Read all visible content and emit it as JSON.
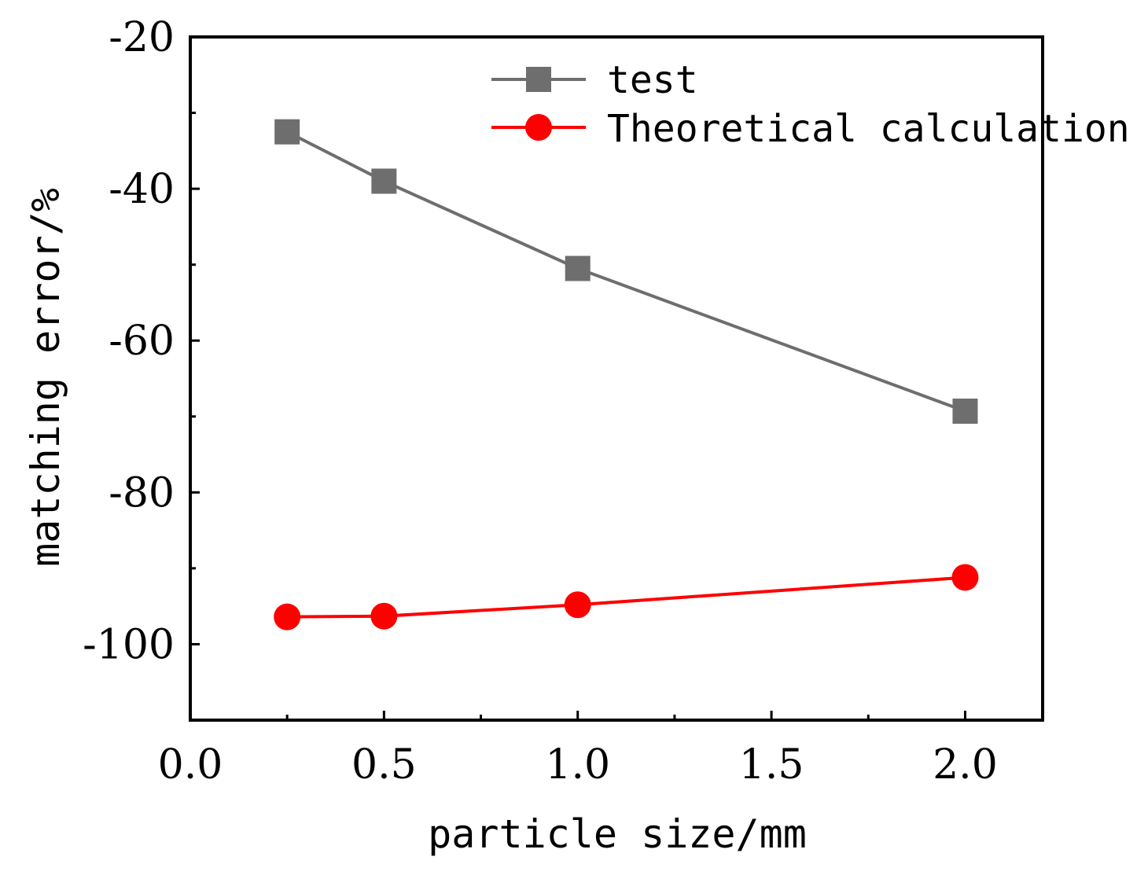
{
  "chart_data": {
    "type": "line",
    "title": "",
    "xlabel": "particle size/mm",
    "ylabel": "matching error/%",
    "xlim": [
      0.0,
      2.2
    ],
    "ylim": [
      -110,
      -20
    ],
    "xticks": [
      0.0,
      0.5,
      1.0,
      1.5,
      2.0
    ],
    "xtick_labels": [
      "0.0",
      "0.5",
      "1.0",
      "1.5",
      "2.0"
    ],
    "yticks": [
      -20,
      -40,
      -60,
      -80,
      -100
    ],
    "ytick_labels": [
      "-20",
      "-40",
      "-60",
      "-80",
      "-100"
    ],
    "grid": false,
    "legend_position": "top-right",
    "x": [
      0.25,
      0.5,
      1.0,
      2.0
    ],
    "series": [
      {
        "name": "test",
        "color": "#6e6e6e",
        "marker": "square",
        "values": [
          -32.5,
          -39.0,
          -50.5,
          -69.3
        ]
      },
      {
        "name": "Theoretical calculation",
        "color": "#ff0000",
        "marker": "circle",
        "values": [
          -96.4,
          -96.3,
          -94.8,
          -91.2
        ]
      }
    ]
  }
}
